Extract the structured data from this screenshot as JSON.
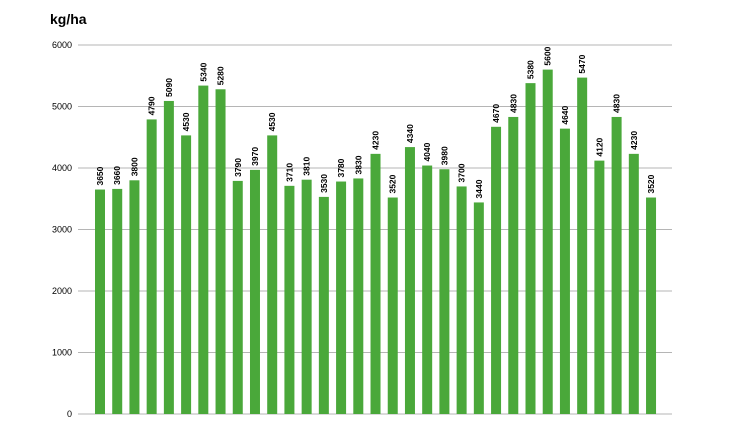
{
  "chart_data": {
    "type": "bar",
    "title": "",
    "ylabel": "kg/ha",
    "xlabel": "",
    "ylim": [
      0,
      6000
    ],
    "yticks": [
      0,
      1000,
      2000,
      3000,
      4000,
      5000,
      6000
    ],
    "grid": true,
    "bar_color": "#4aa83a",
    "values": [
      3650,
      3660,
      3800,
      4790,
      5090,
      4530,
      5340,
      5280,
      3790,
      3970,
      4530,
      3710,
      3810,
      3530,
      3780,
      3830,
      4230,
      3520,
      4340,
      4040,
      3980,
      3700,
      3440,
      4670,
      4830,
      5380,
      5600,
      4640,
      5470,
      4120,
      4830,
      4230,
      3520
    ]
  }
}
